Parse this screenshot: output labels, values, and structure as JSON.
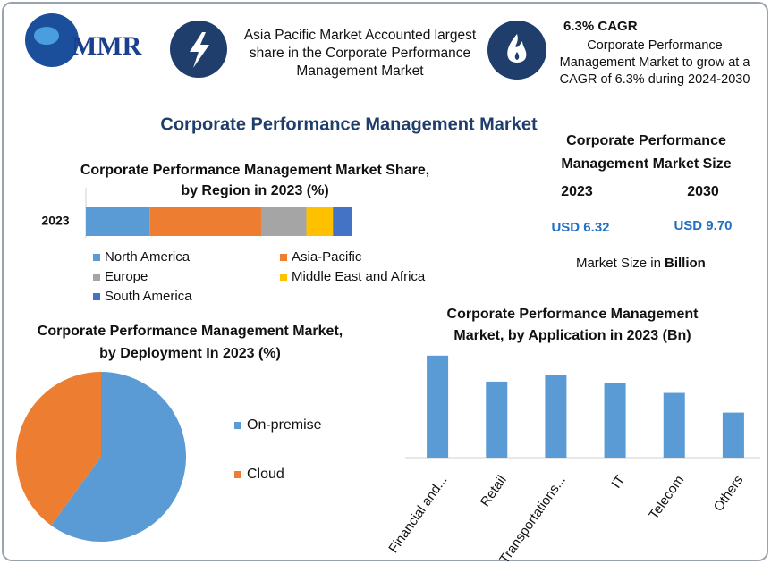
{
  "header": {
    "logo": "MMR",
    "fact": "Asia Pacific Market Accounted largest share in the Corporate Performance Management Market",
    "cagr_title": "6.3% CAGR",
    "cagr_text": "Corporate Performance Management Market to grow at a CAGR of 6.3% during 2024-2030"
  },
  "title": "Corporate Performance Management Market",
  "market_size": {
    "title": "Corporate Performance Management Market Size",
    "years": [
      "2023",
      "2030"
    ],
    "values": [
      "USD 6.32",
      "USD 9.70"
    ],
    "note": "Market Size in",
    "note_unit": "Billion"
  },
  "chart_data": [
    {
      "type": "stacked-hbar",
      "title": "Corporate Performance Management Market Share, by Region in 2023 (%)",
      "categories": [
        "2023"
      ],
      "xlim": [
        0,
        100
      ],
      "series": [
        {
          "name": "North America",
          "color": "#5b9bd5",
          "values": [
            24
          ]
        },
        {
          "name": "Asia-Pacific",
          "color": "#ed7d31",
          "values": [
            42
          ]
        },
        {
          "name": "Europe",
          "color": "#a5a5a5",
          "values": [
            17
          ]
        },
        {
          "name": "Middle East and Africa",
          "color": "#ffc000",
          "values": [
            10
          ]
        },
        {
          "name": "South America",
          "color": "#4472c4",
          "values": [
            7
          ]
        }
      ]
    },
    {
      "type": "pie",
      "title": "Corporate Performance Management Market, by Deployment In 2023 (%)",
      "categories": [
        "On-premise",
        "Cloud"
      ],
      "values": [
        60,
        40
      ],
      "colors": [
        "#5b9bd5",
        "#ed7d31"
      ]
    },
    {
      "type": "bar",
      "title": "Corporate Performance Management Market, by Application in 2023 (Bn)",
      "categories": [
        "Financial and...",
        "Retail",
        "Transportations...",
        "IT",
        "Telecom",
        "Others"
      ],
      "values": [
        1.45,
        1.08,
        1.18,
        1.06,
        0.92,
        0.64
      ],
      "color": "#5b9bd5",
      "ylim": [
        0,
        1.6
      ]
    }
  ]
}
